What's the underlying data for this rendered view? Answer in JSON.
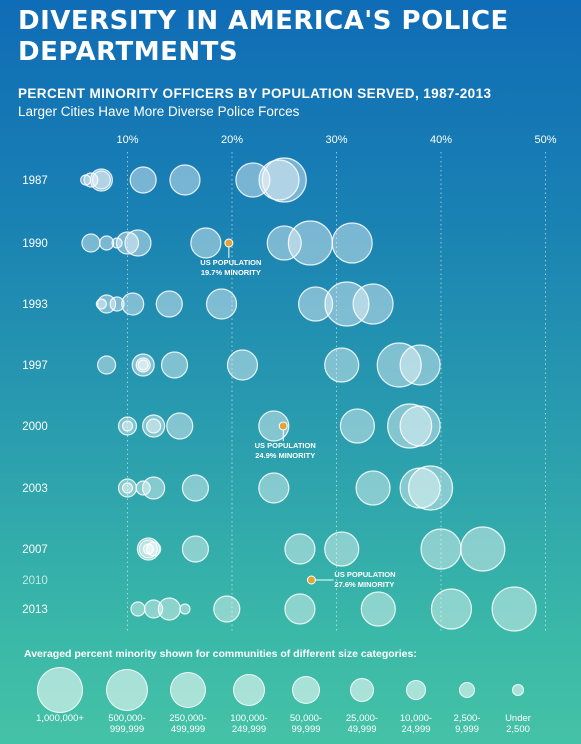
{
  "header": {
    "title": "DIVERSITY IN AMERICA'S POLICE DEPARTMENTS",
    "subtitle": "PERCENT MINORITY OFFICERS BY POPULATION SERVED, 1987-2013",
    "description": "Larger Cities Have More Diverse Police Forces"
  },
  "chart_data": {
    "type": "scatter",
    "x_ticks": [
      "10%",
      "20%",
      "30%",
      "40%",
      "50%"
    ],
    "x_tick_values": [
      10,
      20,
      30,
      40,
      50
    ],
    "xlim": [
      0,
      55
    ],
    "grid": "vertical dotted",
    "years": [
      "1987",
      "1990",
      "1993",
      "1997",
      "2000",
      "2003",
      "2007",
      "2010",
      "2013"
    ],
    "size_categories": [
      "1,000,000+",
      "500,000-999,999",
      "250,000-499,999",
      "100,000-249,999",
      "50,000-99,999",
      "25,000-49,999",
      "10,000-24,999",
      "2,500-9,999",
      "Under 2,500"
    ],
    "series": [
      {
        "year": "1987",
        "values": [
          25,
          24.5,
          22,
          15.5,
          11.5,
          7.5,
          7.5,
          6.5,
          6
        ]
      },
      {
        "year": "1990",
        "values": [
          27.5,
          31.5,
          25,
          17.5,
          11,
          10,
          6.5,
          8,
          9
        ]
      },
      {
        "year": "1993",
        "values": [
          31,
          33.5,
          28,
          19,
          14,
          10.5,
          8,
          9,
          7.5
        ]
      },
      {
        "year": "1997",
        "values": [
          36,
          38,
          30.5,
          21,
          14.5,
          11.5,
          8,
          11.5,
          11.5
        ]
      },
      {
        "year": "2000",
        "values": [
          37,
          38,
          32,
          24,
          15,
          12.5,
          10,
          12.5,
          10
        ]
      },
      {
        "year": "2003",
        "values": [
          39,
          38,
          33.5,
          24,
          16.5,
          12.5,
          10,
          11.5,
          10
        ]
      },
      {
        "year": "2007",
        "values": [
          44,
          40,
          30.5,
          26.5,
          16.5,
          12,
          12,
          12.5,
          12
        ]
      },
      {
        "year": "2013",
        "values": [
          47,
          41,
          34,
          26.5,
          19.5,
          14,
          12.5,
          11,
          15.5
        ]
      }
    ],
    "us_population": [
      {
        "year": "1990",
        "value": 19.7,
        "label": "US POPULATION\n19.7% MINORITY"
      },
      {
        "year": "2000",
        "value": 24.9,
        "label": "US POPULATION\n24.9% MINORITY"
      },
      {
        "year": "2010",
        "value": 27.6,
        "label": "US POPULATION\n27.6% MINORITY"
      }
    ]
  },
  "legend": {
    "title": "Averaged percent minority shown for communities of different size categories:",
    "items": [
      {
        "label": "1,000,000+"
      },
      {
        "label": "500,000-\n999,999"
      },
      {
        "label": "250,000-\n499,999"
      },
      {
        "label": "100,000-\n249,999"
      },
      {
        "label": "50,000-\n99,999"
      },
      {
        "label": "25,000-\n49,999"
      },
      {
        "label": "10,000-\n24,999"
      },
      {
        "label": "2,500-\n9,999"
      },
      {
        "label": "Under\n2,500"
      }
    ]
  },
  "colors": {
    "bubble_fill": "#ffffff",
    "marker": "#e0a53a",
    "background_top": "#0f6cb6",
    "background_bottom": "#45c2a6"
  }
}
